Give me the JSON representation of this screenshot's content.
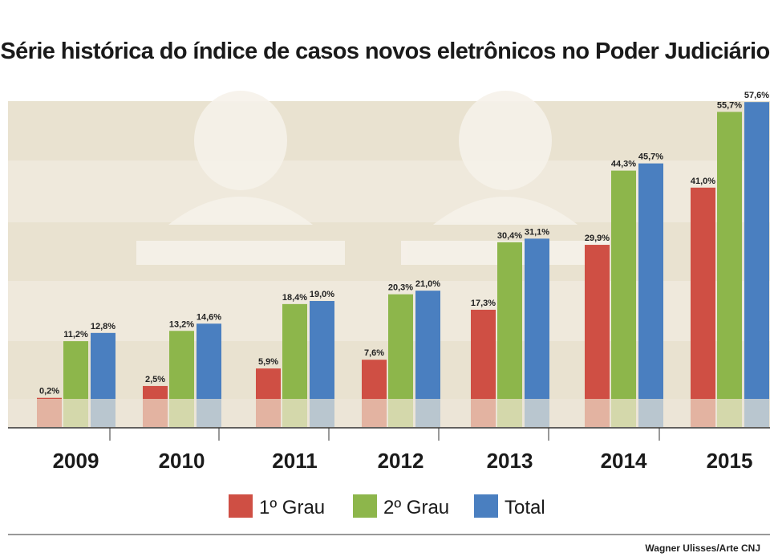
{
  "title": "Série histórica do índice de casos novos eletrônicos no Poder Judiciário",
  "credit": "Wagner Ulisses/Arte CNJ",
  "chart_data": {
    "type": "bar",
    "title": "Série histórica do índice de casos novos eletrônicos no Poder Judiciário",
    "categories": [
      "2009",
      "2010",
      "2011",
      "2012",
      "2013",
      "2014",
      "2015"
    ],
    "series": [
      {
        "name": "1º Grau",
        "color": "#cf4f44",
        "values": [
          0.2,
          2.5,
          5.9,
          7.6,
          17.3,
          29.9,
          41.0
        ],
        "labels": [
          "0,2%",
          "2,5%",
          "5,9%",
          "7,6%",
          "17,3%",
          "29,9%",
          "41,0%"
        ]
      },
      {
        "name": "2º Grau",
        "color": "#8db64b",
        "values": [
          11.2,
          13.2,
          18.4,
          20.3,
          30.4,
          44.3,
          55.7
        ],
        "labels": [
          "11,2%",
          "13,2%",
          "18,4%",
          "20,3%",
          "30,4%",
          "44,3%",
          "55,7%"
        ]
      },
      {
        "name": "Total",
        "color": "#4a7fc0",
        "values": [
          12.8,
          14.6,
          19.0,
          21.0,
          31.1,
          45.7,
          57.6
        ],
        "labels": [
          "12,8%",
          "14,6%",
          "19,0%",
          "21,0%",
          "31,1%",
          "45,7%",
          "57,6%"
        ]
      }
    ],
    "unit": "%",
    "legend_position": "bottom",
    "grid": false,
    "background": "#efe9dc"
  }
}
